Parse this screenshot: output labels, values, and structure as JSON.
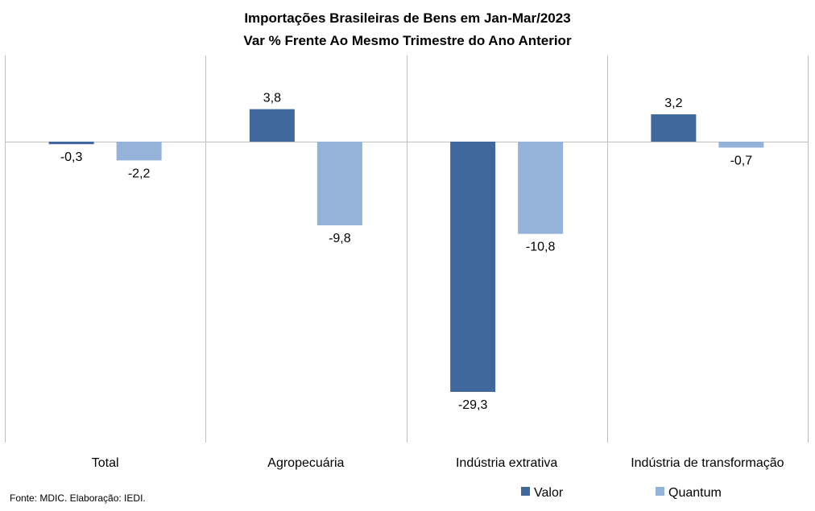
{
  "chart_data": {
    "type": "bar",
    "title": "Importações Brasileiras de Bens em Jan-Mar/2023",
    "subtitle": "Var % Frente Ao Mesmo Trimestre do Ano Anterior",
    "categories": [
      "Total",
      "Agropecuária",
      "Indústria extrativa",
      "Indústria de transformação"
    ],
    "series": [
      {
        "name": "Valor",
        "values": [
          -0.3,
          3.8,
          -29.3,
          3.2
        ],
        "labels": [
          "-0,3",
          "3,8",
          "-29,3",
          "3,2"
        ],
        "color": "#41689C"
      },
      {
        "name": "Quantum",
        "values": [
          -2.2,
          -9.8,
          -10.8,
          -0.7
        ],
        "labels": [
          "-2,2",
          "-9,8",
          "-10,8",
          "-0,7"
        ],
        "color": "#95B2D8"
      }
    ],
    "xlabel": "",
    "ylabel": "",
    "ylim": [
      -33,
      10
    ],
    "grid": false,
    "legend_position": "bottom-right",
    "gridline_color": "#BFBFBF"
  },
  "footer": {
    "source": "Fonte: MDIC. Elaboração: IEDI."
  }
}
